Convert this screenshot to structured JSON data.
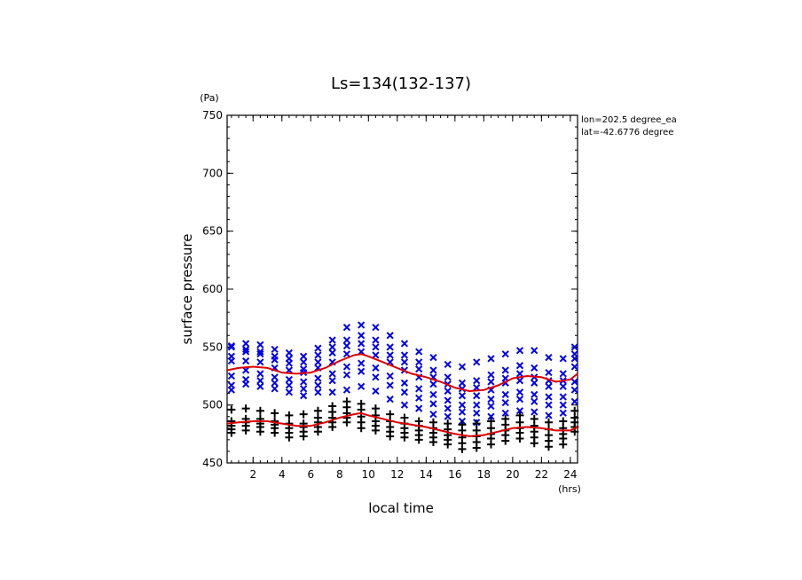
{
  "chart_data": {
    "type": "scatter",
    "title": "Ls=134(132-137)",
    "xlabel": "local time",
    "ylabel": "surface pressure",
    "x_unit": "(hrs)",
    "y_unit": "(Pa)",
    "annotations": [
      "lon=202.5 degree_ea",
      "lat=-42.6776 degree"
    ],
    "xlim": [
      0.2,
      24.5
    ],
    "ylim": [
      450,
      750
    ],
    "xticks": [
      2,
      4,
      6,
      8,
      10,
      12,
      14,
      16,
      18,
      20,
      22,
      24
    ],
    "yticks": [
      450,
      500,
      550,
      600,
      650,
      700,
      750
    ],
    "x_minor_step": 0.5,
    "y_minor_step": 10,
    "grid": false,
    "colors": {
      "upper_points": "#0000ee",
      "lower_points": "#000000",
      "mean_curves": "#dd0000",
      "axes": "#000000"
    },
    "series": [
      {
        "marker": "x",
        "x": [
          0.5,
          1.5,
          2.5,
          3.5,
          4.5,
          5.5,
          6.5,
          7.5,
          8.5,
          9.5,
          10.5,
          11.5,
          12.5,
          13.5,
          14.5,
          15.5,
          16.5,
          17.5,
          18.5,
          19.5,
          20.5,
          21.5,
          22.5,
          23.5,
          24.3
        ],
        "y_sets": [
          [
            513,
            517,
            525,
            538,
            550,
            551,
            542
          ],
          [
            518,
            522,
            530,
            538,
            548,
            553,
            546
          ],
          [
            516,
            521,
            527,
            537,
            546,
            552,
            544
          ],
          [
            514,
            519,
            524,
            532,
            542,
            548,
            539
          ],
          [
            511,
            517,
            522,
            530,
            540,
            545,
            536
          ],
          [
            508,
            514,
            520,
            528,
            537,
            542,
            531
          ],
          [
            511,
            517,
            523,
            532,
            543,
            549,
            537
          ],
          [
            511,
            521,
            527,
            537,
            550,
            556,
            545
          ],
          [
            513,
            526,
            533,
            544,
            556,
            567,
            551
          ],
          [
            516,
            529,
            536,
            546,
            560,
            569,
            553
          ],
          [
            512,
            524,
            532,
            543,
            556,
            567,
            550
          ],
          [
            505,
            517,
            525,
            537,
            550,
            560,
            543
          ],
          [
            500,
            511,
            519,
            530,
            543,
            553,
            537
          ],
          [
            497,
            506,
            514,
            524,
            537,
            546,
            531
          ],
          [
            492,
            501,
            509,
            518,
            530,
            541,
            524
          ],
          [
            490,
            497,
            504,
            512,
            524,
            535,
            518
          ],
          [
            486,
            494,
            500,
            508,
            519,
            533,
            514
          ],
          [
            485,
            493,
            500,
            508,
            521,
            537,
            515
          ],
          [
            490,
            499,
            505,
            513,
            526,
            540,
            520
          ],
          [
            493,
            502,
            509,
            519,
            530,
            544,
            523
          ],
          [
            495,
            505,
            511,
            521,
            534,
            547,
            527
          ],
          [
            494,
            503,
            509,
            519,
            532,
            547,
            524
          ],
          [
            491,
            500,
            507,
            516,
            528,
            541,
            521
          ],
          [
            493,
            500,
            507,
            516,
            527,
            540,
            521
          ],
          [
            503,
            513,
            520,
            533,
            544,
            550,
            540
          ]
        ]
      },
      {
        "marker": "+",
        "x": [
          0.5,
          1.5,
          2.5,
          3.5,
          4.5,
          5.5,
          6.5,
          7.5,
          8.5,
          9.5,
          10.5,
          11.5,
          12.5,
          13.5,
          14.5,
          15.5,
          16.5,
          17.5,
          18.5,
          19.5,
          20.5,
          21.5,
          22.5,
          23.5,
          24.3
        ],
        "y_sets": [
          [
            476,
            479,
            482,
            486,
            496
          ],
          [
            478,
            482,
            485,
            488,
            497
          ],
          [
            477,
            481,
            484,
            488,
            495
          ],
          [
            476,
            480,
            483,
            486,
            493
          ],
          [
            472,
            476,
            480,
            484,
            491
          ],
          [
            473,
            477,
            481,
            484,
            492
          ],
          [
            477,
            481,
            485,
            489,
            495
          ],
          [
            481,
            485,
            489,
            494,
            499
          ],
          [
            485,
            489,
            493,
            498,
            503
          ],
          [
            480,
            485,
            490,
            496,
            501
          ],
          [
            478,
            482,
            486,
            491,
            497
          ],
          [
            473,
            477,
            481,
            486,
            492
          ],
          [
            472,
            476,
            480,
            484,
            489
          ],
          [
            470,
            474,
            478,
            482,
            486
          ],
          [
            468,
            472,
            476,
            480,
            485
          ],
          [
            466,
            470,
            474,
            479,
            484
          ],
          [
            462,
            467,
            472,
            478,
            483
          ],
          [
            463,
            468,
            473,
            478,
            484
          ],
          [
            466,
            471,
            475,
            480,
            486
          ],
          [
            469,
            474,
            478,
            483,
            488
          ],
          [
            471,
            476,
            480,
            485,
            491
          ],
          [
            467,
            472,
            477,
            482,
            488
          ],
          [
            464,
            469,
            474,
            479,
            485
          ],
          [
            466,
            471,
            475,
            480,
            486
          ],
          [
            477,
            481,
            485,
            489,
            495
          ]
        ]
      }
    ],
    "curves": [
      {
        "x": [
          0.2,
          1,
          2,
          3,
          4,
          5,
          6,
          7,
          8,
          9,
          9.5,
          10,
          11,
          12,
          13,
          14,
          15,
          16,
          17,
          18,
          19,
          20,
          21,
          22,
          23,
          24,
          24.5
        ],
        "y": [
          530,
          532,
          533,
          532,
          528,
          527,
          528,
          532,
          538,
          543,
          544,
          542,
          537,
          532,
          527,
          524,
          520,
          515,
          512,
          513,
          517,
          523,
          525,
          524,
          520,
          522,
          527
        ]
      },
      {
        "x": [
          0.2,
          1,
          2,
          3,
          4,
          5,
          6,
          7,
          8,
          9,
          9.5,
          10,
          11,
          12,
          13,
          14,
          15,
          16,
          17,
          18,
          19,
          20,
          21,
          22,
          23,
          24,
          24.5
        ],
        "y": [
          484,
          485,
          486,
          486,
          484,
          482,
          482,
          485,
          489,
          492,
          493,
          491,
          488,
          485,
          483,
          481,
          478,
          475,
          473,
          474,
          477,
          480,
          481,
          480,
          478,
          478,
          481
        ]
      }
    ]
  }
}
